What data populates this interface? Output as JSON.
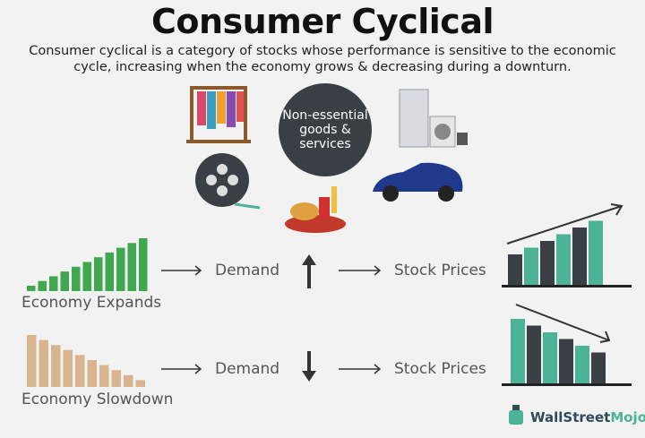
{
  "title": "Consumer Cyclical",
  "subtitle": "Consumer cyclical is a category of stocks whose performance is sensitive to the economic cycle, increasing when the economy grows & decreasing during a downturn.",
  "center_label": "Non-essential goods & services",
  "icons": [
    "clothes-rack-icon",
    "film-reel-icon",
    "fast-food-icon",
    "appliances-icon",
    "car-icon"
  ],
  "rows": [
    {
      "economy_label": "Economy Expands",
      "demand_label": "Demand",
      "demand_direction": "up",
      "stock_label": "Stock Prices",
      "stock_trend": "up"
    },
    {
      "economy_label": "Economy Slowdown",
      "demand_label": "Demand",
      "demand_direction": "down",
      "stock_label": "Stock Prices",
      "stock_trend": "down"
    }
  ],
  "colors": {
    "expand": "#3fa84f",
    "slowdown": "#d8b58f",
    "teal": "#4db397",
    "dark": "#3a3f45"
  },
  "logo": {
    "text_a": "WallStreet",
    "text_b": "Mojo"
  }
}
